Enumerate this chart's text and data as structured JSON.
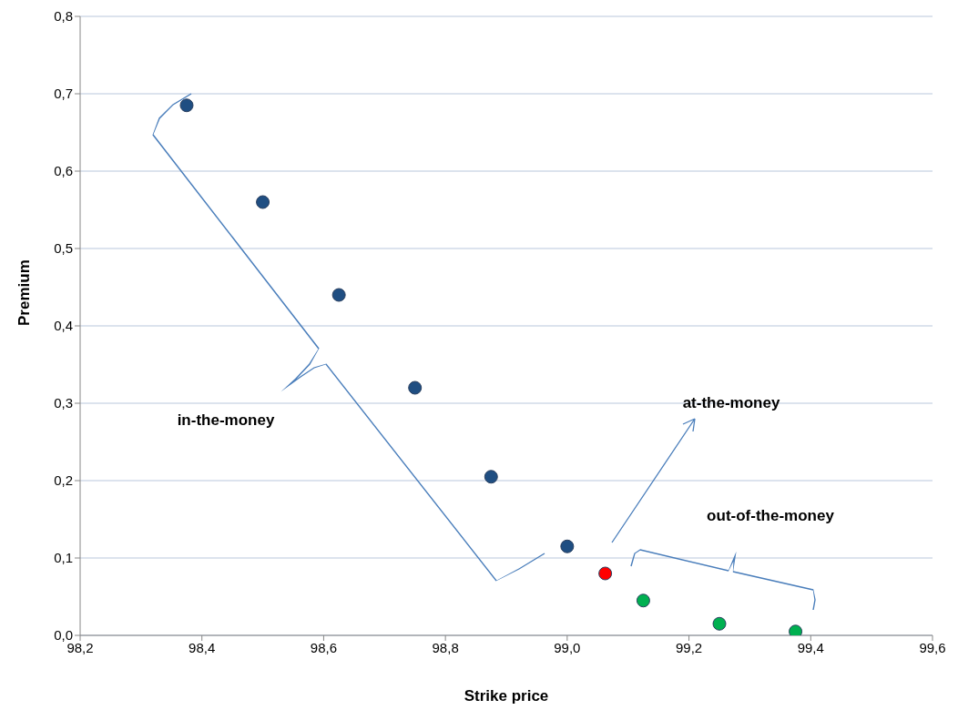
{
  "chart_data": {
    "type": "scatter",
    "xlabel": "Strike price",
    "ylabel": "Premium",
    "xlim": [
      98.2,
      99.6
    ],
    "xticks": [
      {
        "value": 98.2,
        "label": "98,2"
      },
      {
        "value": 98.4,
        "label": "98,4"
      },
      {
        "value": 98.6,
        "label": "98,6"
      },
      {
        "value": 98.8,
        "label": "98,8"
      },
      {
        "value": 99.0,
        "label": "99,0"
      },
      {
        "value": 99.2,
        "label": "99,2"
      },
      {
        "value": 99.4,
        "label": "99,4"
      },
      {
        "value": 99.6,
        "label": "99,6"
      }
    ],
    "ylim": [
      0,
      0.8
    ],
    "yticks": [
      {
        "value": 0,
        "label": "0,0"
      },
      {
        "value": 0.1,
        "label": "0,1"
      },
      {
        "value": 0.2,
        "label": "0,2"
      },
      {
        "value": 0.3,
        "label": "0,3"
      },
      {
        "value": 0.4,
        "label": "0,4"
      },
      {
        "value": 0.5,
        "label": "0,5"
      },
      {
        "value": 0.6,
        "label": "0,6"
      },
      {
        "value": 0.7,
        "label": "0,7"
      },
      {
        "value": 0.8,
        "label": "0,8"
      }
    ],
    "grid": "y",
    "marker": "circle",
    "legend": false,
    "series": [
      {
        "color": "#1f4e82",
        "x": [
          98.375,
          98.5,
          98.625,
          98.75,
          98.875,
          99.0
        ],
        "values": [
          0.685,
          0.56,
          0.44,
          0.32,
          0.205,
          0.115
        ]
      },
      {
        "color": "#ff0000",
        "x": [
          99.0625
        ],
        "values": [
          0.08
        ]
      },
      {
        "color": "#00b050",
        "x": [
          99.125,
          99.25,
          99.375
        ],
        "values": [
          0.045,
          0.015,
          0.005
        ]
      }
    ],
    "annotations": [
      "in-the-money",
      "at-the-money",
      "out-of-the-money"
    ]
  }
}
